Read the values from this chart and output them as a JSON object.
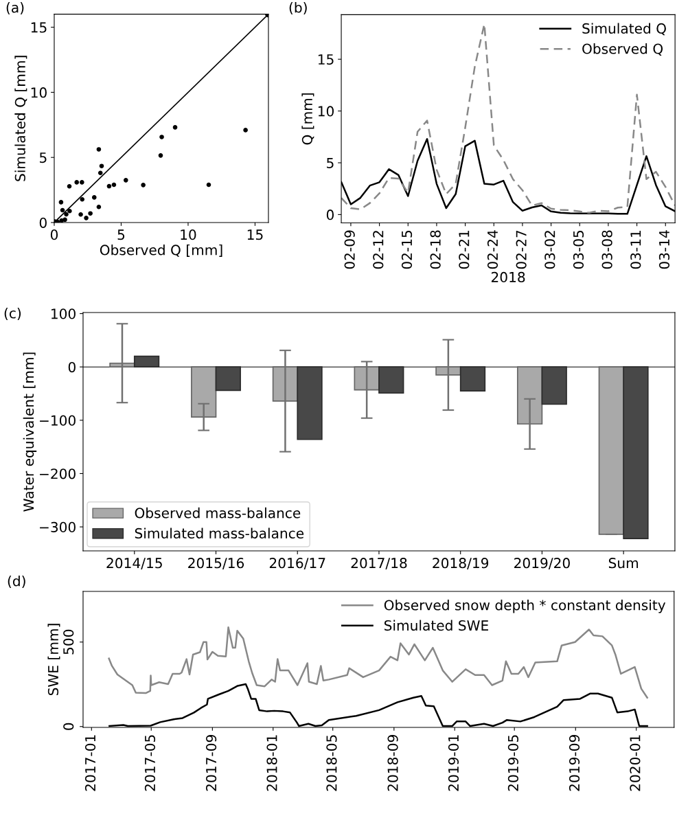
{
  "chart_data": [
    {
      "type": "scatter",
      "title": "(a)",
      "xlabel": "Observed Q [mm]",
      "ylabel": "Simulated Q [mm]",
      "xlim": [
        0,
        16
      ],
      "ylim": [
        0,
        16
      ],
      "xticks": [
        0,
        5,
        10,
        15
      ],
      "yticks": [
        0,
        5,
        10,
        15
      ],
      "marker": "circle",
      "grid": false,
      "legend": false,
      "series": [
        {
          "type": "scatter",
          "color": "#000000",
          "x": [
            0.51,
            0.62,
            0.9,
            1.13,
            1.15,
            1.68,
            2.07,
            2.09,
            1.98,
            2.39,
            2.7,
            2.99,
            3.33,
            3.33,
            3.45,
            3.54,
            4.1,
            4.46,
            5.35,
            6.65,
            7.95,
            8.03,
            9.03,
            11.54,
            14.29,
            0.25,
            0.55,
            0.8
          ],
          "values": [
            1.56,
            0.95,
            0.63,
            2.78,
            0.88,
            3.09,
            3.09,
            1.78,
            0.62,
            0.35,
            0.7,
            1.93,
            5.62,
            1.2,
            3.81,
            4.34,
            2.79,
            2.9,
            3.25,
            2.88,
            5.15,
            6.57,
            7.31,
            2.9,
            7.1,
            0.05,
            0.15,
            0.22
          ]
        },
        {
          "type": "line",
          "color": "#000000",
          "x": [
            0,
            16
          ],
          "values": [
            0,
            16
          ]
        }
      ]
    },
    {
      "type": "line",
      "title": "(b)",
      "xlabel": "2018",
      "ylabel": "Q [mm]",
      "xlim": [
        "2018-02-08",
        "2018-03-15"
      ],
      "ylim": [
        -0.8,
        19.3
      ],
      "yticks": [
        0,
        5,
        10,
        15
      ],
      "grid": false,
      "legend": "top right",
      "xticks": [
        {
          "value": "2018-02-09",
          "label": "02-09"
        },
        {
          "value": "2018-02-12",
          "label": "02-12"
        },
        {
          "value": "2018-02-15",
          "label": "02-15"
        },
        {
          "value": "2018-02-18",
          "label": "02-18"
        },
        {
          "value": "2018-02-21",
          "label": "02-21"
        },
        {
          "value": "2018-02-24",
          "label": "02-24"
        },
        {
          "value": "2018-02-27",
          "label": "02-27"
        },
        {
          "value": "2018-03-02",
          "label": "03-02"
        },
        {
          "value": "2018-03-05",
          "label": "03-05"
        },
        {
          "value": "2018-03-08",
          "label": "03-08"
        },
        {
          "value": "2018-03-11",
          "label": "03-11"
        },
        {
          "value": "2018-03-14",
          "label": "03-14"
        }
      ],
      "x": [
        "2018-02-08",
        "2018-02-09",
        "2018-02-10",
        "2018-02-11",
        "2018-02-12",
        "2018-02-13",
        "2018-02-14",
        "2018-02-15",
        "2018-02-16",
        "2018-02-17",
        "2018-02-18",
        "2018-02-19",
        "2018-02-20",
        "2018-02-21",
        "2018-02-22",
        "2018-02-23",
        "2018-02-24",
        "2018-02-25",
        "2018-02-26",
        "2018-02-27",
        "2018-02-28",
        "2018-03-01",
        "2018-03-02",
        "2018-03-03",
        "2018-03-04",
        "2018-03-05",
        "2018-03-06",
        "2018-03-07",
        "2018-03-08",
        "2018-03-09",
        "2018-03-10",
        "2018-03-11",
        "2018-03-12",
        "2018-03-13",
        "2018-03-14",
        "2018-03-15"
      ],
      "series": [
        {
          "name": "Simulated Q",
          "color": "#000000",
          "line_style": "solid",
          "values": [
            3.14,
            0.99,
            1.61,
            2.8,
            3.12,
            4.38,
            3.81,
            1.78,
            5.2,
            7.3,
            2.97,
            0.62,
            1.98,
            6.6,
            7.13,
            2.97,
            2.9,
            3.27,
            1.21,
            0.37,
            0.69,
            0.89,
            0.3,
            0.17,
            0.12,
            0.1,
            0.1,
            0.1,
            0.1,
            0.08,
            0.07,
            2.85,
            5.64,
            2.85,
            0.79,
            0.32
          ]
        },
        {
          "name": "Observed Q",
          "color": "#888888",
          "line_style": "dashed",
          "values": [
            1.61,
            0.62,
            0.5,
            1.11,
            2.05,
            3.54,
            3.47,
            2.1,
            8.0,
            9.08,
            4.33,
            1.98,
            2.97,
            8.42,
            14.28,
            18.39,
            6.68,
            5.27,
            3.42,
            2.35,
            0.87,
            1.11,
            0.57,
            0.45,
            0.42,
            0.3,
            0.17,
            0.37,
            0.32,
            0.67,
            0.74,
            11.58,
            3.42,
            4.13,
            2.67,
            0.87
          ]
        }
      ]
    },
    {
      "type": "bar",
      "title": "(c)",
      "ylabel": "Water equivalent [mm]",
      "categories": [
        "2014/15",
        "2015/16",
        "2016/17",
        "2017/18",
        "2018/19",
        "2019/20",
        "Sum"
      ],
      "ylim": [
        -345,
        102
      ],
      "yticks": [
        100,
        0,
        {
          "value": -100,
          "label": "−100"
        },
        {
          "value": -200,
          "label": "−200"
        },
        {
          "value": -300,
          "label": "−300"
        }
      ],
      "grid": false,
      "legend": "bottom left",
      "ref_lines": [
        {
          "axis": "y",
          "value": 0,
          "color": "#000000"
        }
      ],
      "series": [
        {
          "name": "Observed mass-balance",
          "color": "#a9a9a9",
          "values": [
            7,
            -94,
            -64,
            -43,
            -15,
            -107,
            -314
          ],
          "errors": [
            74,
            25,
            95,
            53,
            66,
            47,
            null
          ]
        },
        {
          "name": "Simulated mass-balance",
          "color": "#484848",
          "values": [
            20,
            -44,
            -136,
            -49,
            -45,
            -70,
            -322
          ]
        }
      ]
    },
    {
      "type": "line",
      "title": "(d)",
      "ylabel": "SWE [mm]",
      "xlim": [
        "2016-12-15",
        "2020-03-17"
      ],
      "ylim": [
        -5,
        800
      ],
      "yticks": [
        0,
        500
      ],
      "grid": false,
      "legend": "top right",
      "xticks": [
        {
          "value": "2017-01",
          "label": "2017-01"
        },
        {
          "value": "2017-05",
          "label": "2017-05"
        },
        {
          "value": "2017-09",
          "label": "2017-09"
        },
        {
          "value": "2018-01",
          "label": "2018-01"
        },
        {
          "value": "2018-05",
          "label": "2018-05"
        },
        {
          "value": "2018-09",
          "label": "2018-09"
        },
        {
          "value": "2019-01",
          "label": "2019-01"
        },
        {
          "value": "2019-05",
          "label": "2019-05"
        },
        {
          "value": "2019-09",
          "label": "2019-09"
        },
        {
          "value": "2020-01",
          "label": "2020-01"
        }
      ],
      "series": [
        {
          "name": "Observed snow depth * constant density",
          "color": "#888888",
          "x": [
            "2017-02-05",
            "2017-02-11",
            "2017-02-22",
            "2017-03-08",
            "2017-03-24",
            "2017-03-31",
            "2017-04-20",
            "2017-04-29",
            "2017-04-30",
            "2017-05-01",
            "2017-05-17",
            "2017-06-04",
            "2017-06-13",
            "2017-06-27",
            "2017-07-01",
            "2017-07-11",
            "2017-07-17",
            "2017-07-24",
            "2017-08-07",
            "2017-08-14",
            "2017-08-20",
            "2017-08-22",
            "2017-09-01",
            "2017-09-12",
            "2017-09-28",
            "2017-10-03",
            "2017-10-05",
            "2017-10-12",
            "2017-10-17",
            "2017-10-21",
            "2017-11-02",
            "2017-11-13",
            "2017-11-20",
            "2017-11-29",
            "2017-12-15",
            "2017-12-29",
            "2018-01-05",
            "2018-01-10",
            "2018-01-15",
            "2018-02-01",
            "2018-02-19",
            "2018-03-11",
            "2018-03-14",
            "2018-03-30",
            "2018-04-07",
            "2018-04-12",
            "2018-04-23",
            "2018-05-30",
            "2018-06-03",
            "2018-07-01",
            "2018-08-02",
            "2018-08-25",
            "2018-09-08",
            "2018-09-14",
            "2018-10-01",
            "2018-10-12",
            "2018-11-02",
            "2018-11-18",
            "2018-12-08",
            "2018-12-27",
            "2019-01-23",
            "2019-02-11",
            "2019-03-01",
            "2019-03-17",
            "2019-04-07",
            "2019-04-14",
            "2019-04-25",
            "2019-05-09",
            "2019-05-20",
            "2019-05-29",
            "2019-06-12",
            "2019-07-26",
            "2019-08-04",
            "2019-08-31",
            "2019-09-28",
            "2019-10-07",
            "2019-10-25",
            "2019-11-13",
            "2019-11-20",
            "2019-12-01",
            "2019-12-29",
            "2020-01-11",
            "2020-01-23"
          ],
          "values": [
            403,
            359,
            308,
            278,
            245,
            200,
            198,
            211,
            302,
            245,
            262,
            251,
            312,
            312,
            319,
            399,
            308,
            426,
            440,
            500,
            500,
            397,
            442,
            419,
            415,
            587,
            560,
            466,
            466,
            567,
            520,
            386,
            316,
            245,
            238,
            278,
            265,
            399,
            332,
            332,
            245,
            375,
            265,
            251,
            359,
            272,
            278,
            305,
            345,
            292,
            332,
            413,
            392,
            493,
            426,
            487,
            392,
            466,
            332,
            265,
            339,
            305,
            305,
            245,
            272,
            386,
            312,
            312,
            352,
            292,
            379,
            386,
            480,
            500,
            574,
            540,
            534,
            480,
            426,
            312,
            352,
            224,
            171
          ]
        },
        {
          "name": "Simulated SWE",
          "color": "#000000",
          "x": [
            "2017-02-06",
            "2017-03-06",
            "2017-03-15",
            "2017-04-30",
            "2017-05-19",
            "2017-06-15",
            "2017-07-03",
            "2017-07-26",
            "2017-08-09",
            "2017-08-21",
            "2017-08-23",
            "2017-09-15",
            "2017-10-03",
            "2017-10-22",
            "2017-11-07",
            "2017-11-11",
            "2017-11-18",
            "2017-11-27",
            "2017-12-04",
            "2017-12-20",
            "2018-01-03",
            "2018-01-21",
            "2018-02-04",
            "2018-02-18",
            "2018-02-22",
            "2018-03-13",
            "2018-03-27",
            "2018-04-09",
            "2018-04-23",
            "2018-06-17",
            "2018-08-02",
            "2018-09-08",
            "2018-10-10",
            "2018-10-26",
            "2018-11-04",
            "2018-11-20",
            "2018-12-08",
            "2018-12-27",
            "2019-01-05",
            "2019-01-23",
            "2019-02-01",
            "2019-03-01",
            "2019-03-19",
            "2019-04-07",
            "2019-04-16",
            "2019-05-13",
            "2019-06-10",
            "2019-07-26",
            "2019-08-08",
            "2019-09-10",
            "2019-09-30",
            "2019-10-16",
            "2019-11-13",
            "2019-11-24",
            "2019-12-15",
            "2019-12-29",
            "2020-01-07",
            "2020-01-23"
          ],
          "values": [
            3,
            9,
            3,
            5,
            26,
            43,
            50,
            83,
            110,
            130,
            164,
            191,
            211,
            241,
            251,
            224,
            164,
            164,
            97,
            90,
            93,
            90,
            83,
            23,
            3,
            16,
            3,
            7,
            39,
            63,
            97,
            144,
            171,
            181,
            124,
            120,
            3,
            3,
            30,
            30,
            3,
            16,
            3,
            23,
            39,
            30,
            56,
            117,
            157,
            164,
            195,
            195,
            171,
            83,
            90,
            101,
            3,
            3
          ]
        }
      ]
    }
  ]
}
